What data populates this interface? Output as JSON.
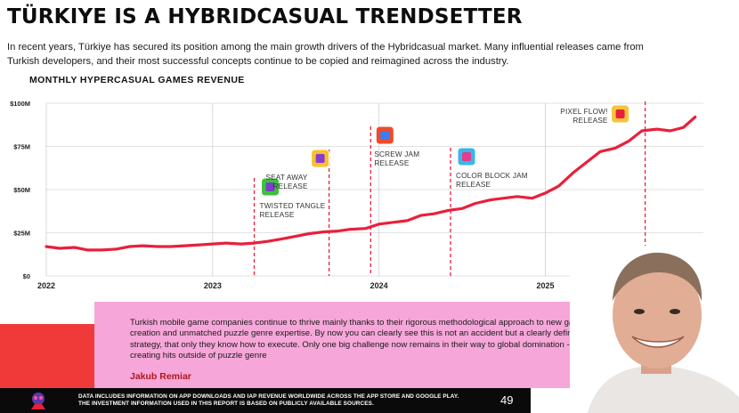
{
  "title": "TÜRKIYE IS A HYBRIDCASUAL TRENDSETTER",
  "intro": "In recent years, Türkiye has secured its position among the main growth drivers of the Hybridcasual market. Many influential releases came from Turkish developers, and their most successful concepts continue to be copied and reimagined across the industry.",
  "chart_data": {
    "type": "line",
    "title": "MONTHLY HYPERCASUAL GAMES REVENUE",
    "xlabel": "",
    "ylabel": "",
    "x_range": [
      2022.0,
      2025.95
    ],
    "ylim": [
      0,
      100
    ],
    "yticks": [
      "$0",
      "$25M",
      "$50M",
      "$75M",
      "$100M"
    ],
    "ytick_values": [
      0,
      25,
      50,
      75,
      100
    ],
    "xticks": [
      "2022",
      "2023",
      "2024",
      "2025"
    ],
    "xtick_values": [
      2022,
      2023,
      2024,
      2025
    ],
    "grid": true,
    "series": [
      {
        "color": "#e8203c",
        "x": [
          2022.0,
          2022.08,
          2022.17,
          2022.25,
          2022.33,
          2022.42,
          2022.5,
          2022.58,
          2022.67,
          2022.75,
          2022.83,
          2022.92,
          2023.0,
          2023.08,
          2023.17,
          2023.25,
          2023.33,
          2023.42,
          2023.5,
          2023.58,
          2023.67,
          2023.75,
          2023.83,
          2023.92,
          2024.0,
          2024.08,
          2024.17,
          2024.25,
          2024.33,
          2024.42,
          2024.5,
          2024.58,
          2024.67,
          2024.75,
          2024.83,
          2024.92,
          2025.0,
          2025.08,
          2025.17,
          2025.25,
          2025.33,
          2025.42,
          2025.5,
          2025.58,
          2025.67,
          2025.75,
          2025.83,
          2025.9
        ],
        "values": [
          17,
          16,
          16.5,
          15,
          15,
          15.5,
          17,
          17.5,
          17,
          17,
          17.5,
          18,
          18.5,
          19,
          18.5,
          19,
          20,
          21.5,
          23,
          24.5,
          25.5,
          26,
          27,
          27.5,
          30,
          31,
          32,
          35,
          36,
          38,
          39,
          42,
          44,
          45,
          46,
          45,
          48,
          52,
          60,
          66,
          72,
          74,
          78,
          84,
          85,
          84,
          86,
          92
        ]
      }
    ],
    "annotations": [
      {
        "label": [
          "TWISTED TANGLE",
          "RELEASE"
        ],
        "x": 2023.25,
        "icon": "twisted-tangle-icon"
      },
      {
        "label": [
          "SEAT AWAY",
          "RELEASE"
        ],
        "x": 2023.7,
        "icon": "seat-away-icon"
      },
      {
        "label": [
          "SCREW JAM",
          "RELEASE"
        ],
        "x": 2023.95,
        "icon": "screw-jam-icon"
      },
      {
        "label": [
          "COLOR BLOCK JAM",
          "RELEASE"
        ],
        "x": 2024.43,
        "icon": "color-block-jam-icon"
      },
      {
        "label": [
          "PIXEL FLOW!",
          "RELEASE"
        ],
        "x": 2025.6,
        "icon": "pixel-flow-icon"
      }
    ],
    "annotation_color": "#e8203c"
  },
  "quote": "Turkish mobile game companies continue to thrive mainly thanks to their rigorous methodological approach to new games creation and unmatched puzzle genre expertise. By now you can clearly see this is not an accident but a clearly defined strategy, that only they know how to execute. Only one big challenge now remains in their way to global domination - creating hits outside of puzzle genre",
  "author": "Jakub Remiar",
  "footer": {
    "note_line1": "DATA INCLUDES INFORMATION ON APP DOWNLOADS AND IAP REVENUE WORLDWIDE ACROSS THE APP STORE AND GOOGLE PLAY.",
    "note_line2": "THE INVESTMENT INFORMATION USED IN THIS REPORT IS BASED ON PUBLICLY AVAILABLE SOURCES.",
    "page_number": "49",
    "logo_icon": "mascot-logo-icon"
  },
  "colors": {
    "accent_red": "#f03a3a",
    "pink": "#f6a6d8",
    "line": "#e8203c",
    "author": "#b01818"
  }
}
